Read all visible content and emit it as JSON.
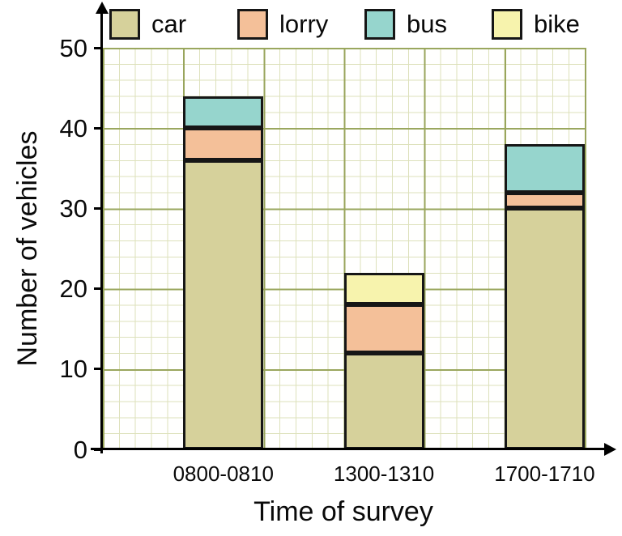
{
  "chart_data": {
    "type": "bar",
    "stacked": true,
    "title": "",
    "xlabel": "Time of survey",
    "ylabel": "Number of vehicles",
    "categories": [
      "0800-0810",
      "1300-1310",
      "1700-1710"
    ],
    "series": [
      {
        "name": "car",
        "color": "#d6d19b",
        "values": [
          36,
          12,
          30
        ]
      },
      {
        "name": "lorry",
        "color": "#f4c099",
        "values": [
          4,
          6,
          2
        ]
      },
      {
        "name": "bus",
        "color": "#96d5cd",
        "values": [
          4,
          0,
          6
        ]
      },
      {
        "name": "bike",
        "color": "#f7f3ad",
        "values": [
          0,
          4,
          0
        ]
      }
    ],
    "totals": [
      44,
      22,
      38
    ],
    "ylim": [
      0,
      50
    ],
    "yticks": [
      0,
      10,
      20,
      30,
      40,
      50
    ],
    "grid": "on",
    "grid_minor_step": 2,
    "grid_major_step": 10,
    "legend_position": "top",
    "colors": {
      "grid_minor": "#dde1bb",
      "grid_major": "#99a55c",
      "bar_border": "#161616",
      "axis": "#000000"
    }
  }
}
